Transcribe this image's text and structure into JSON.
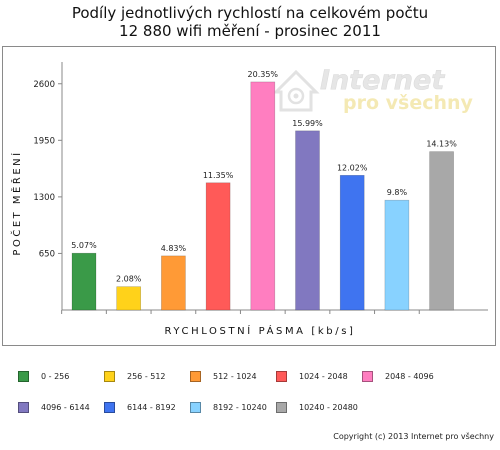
{
  "chart_data": {
    "type": "bar",
    "title": [
      "Podíly jednotlivých rychlostí na celkovém počtu",
      "12 880 wifi měření - prosinec 2011"
    ],
    "xlabel": "RYCHLOSTNÍ PÁSMA [kb/s]",
    "ylabel": "POČET MĚŘENÍ",
    "ylim": [
      0,
      2850
    ],
    "yticks": [
      650,
      1300,
      1950,
      2600
    ],
    "grid": false,
    "legend_position": "bottom",
    "categories": [
      "0 - 256",
      "256 - 512",
      "512 - 1024",
      "1024 - 2048",
      "2048 - 4096",
      "4096 - 6144",
      "6144 - 8192",
      "8192 - 10240",
      "10240 - 20480"
    ],
    "values": [
      653,
      268,
      622,
      1462,
      2621,
      2059,
      1548,
      1262,
      1820
    ],
    "labels": [
      "5.07%",
      "2.08%",
      "4.83%",
      "11.35%",
      "20.35%",
      "15.99%",
      "12.02%",
      "9.8%",
      "14.13%"
    ],
    "colors": [
      "#3a9a48",
      "#ffd21a",
      "#ff9a36",
      "#ff5a58",
      "#ff7ec0",
      "#8178c0",
      "#3f74f0",
      "#88d2ff",
      "#a8a8a8"
    ]
  },
  "watermark": {
    "line1": "Internet",
    "line2": "pro všechny",
    "icon": "house-at-icon"
  },
  "copyright": "Copyright (c) 2013 Internet pro všechny"
}
